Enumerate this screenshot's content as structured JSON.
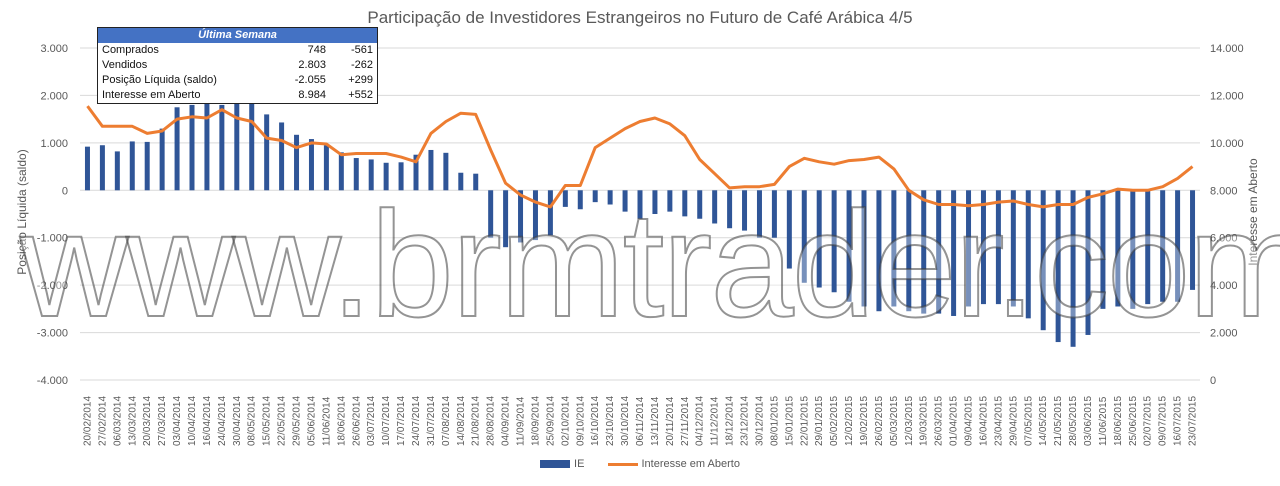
{
  "chart_data": {
    "type": "bar+line",
    "title": "Participação de Investidores Estrangeiros no Futuro de Café Arábica 4/5",
    "ylabel_left": "Posição Líquida (saldo)",
    "ylabel_right": "Interesse em Aberto",
    "ylim_left": [
      -4000,
      3000
    ],
    "ylim_right": [
      0,
      14000
    ],
    "yticks_left": [
      "3.000",
      "2.000",
      "1.000",
      "0",
      "-1.000",
      "-2.000",
      "-3.000",
      "-4.000"
    ],
    "yticks_right": [
      "14.000",
      "12.000",
      "10.000",
      "8.000",
      "6.000",
      "4.000",
      "2.000",
      "0"
    ],
    "categories": [
      "20/02/2014",
      "27/02/2014",
      "06/03/2014",
      "13/03/2014",
      "20/03/2014",
      "27/03/2014",
      "03/04/2014",
      "10/04/2014",
      "16/04/2014",
      "24/04/2014",
      "30/04/2014",
      "08/05/2014",
      "15/05/2014",
      "22/05/2014",
      "29/05/2014",
      "05/06/2014",
      "11/06/2014",
      "18/06/2014",
      "26/06/2014",
      "03/07/2014",
      "10/07/2014",
      "17/07/2014",
      "24/07/2014",
      "31/07/2014",
      "07/08/2014",
      "14/08/2014",
      "21/08/2014",
      "28/08/2014",
      "04/09/2014",
      "11/09/2014",
      "18/09/2014",
      "25/09/2014",
      "02/10/2014",
      "09/10/2014",
      "16/10/2014",
      "23/10/2014",
      "30/10/2014",
      "06/11/2014",
      "13/11/2014",
      "20/11/2014",
      "27/11/2014",
      "04/12/2014",
      "11/12/2014",
      "18/12/2014",
      "23/12/2014",
      "30/12/2014",
      "08/01/2015",
      "15/01/2015",
      "22/01/2015",
      "29/01/2015",
      "05/02/2015",
      "12/02/2015",
      "19/02/2015",
      "26/02/2015",
      "05/03/2015",
      "12/03/2015",
      "19/03/2015",
      "26/03/2015",
      "01/04/2015",
      "09/04/2015",
      "16/04/2015",
      "23/04/2015",
      "29/04/2015",
      "07/05/2015",
      "14/05/2015",
      "21/05/2015",
      "28/05/2015",
      "03/06/2015",
      "11/06/2015",
      "18/06/2015",
      "25/06/2015",
      "02/07/2015",
      "09/07/2015",
      "16/07/2015",
      "23/07/2015"
    ],
    "series": [
      {
        "name": "IE",
        "type": "bar",
        "axis": "left",
        "color": "#2f5597",
        "values": [
          920,
          950,
          820,
          1030,
          1020,
          1300,
          1750,
          1800,
          1830,
          1800,
          1850,
          1820,
          1600,
          1430,
          1170,
          1080,
          950,
          800,
          680,
          650,
          580,
          590,
          750,
          850,
          790,
          370,
          350,
          -1000,
          -1200,
          -1100,
          -1050,
          -950,
          -350,
          -400,
          -250,
          -300,
          -450,
          -600,
          -500,
          -450,
          -550,
          -600,
          -700,
          -800,
          -850,
          -1000,
          -1000,
          -1650,
          -1950,
          -2050,
          -2150,
          -2350,
          -2450,
          -2550,
          -2450,
          -2550,
          -2600,
          -2600,
          -2650,
          -2450,
          -2400,
          -2400,
          -2450,
          -2700,
          -2950,
          -3200,
          -3300,
          -3050,
          -2500,
          -2450,
          -2500,
          -2400,
          -2350,
          -2350,
          -2100
        ]
      },
      {
        "name": "Interesse em Aberto",
        "type": "line",
        "axis": "right",
        "color": "#ed7d31",
        "values": [
          11550,
          10700,
          10700,
          10700,
          10400,
          10500,
          11000,
          11100,
          11050,
          11400,
          11050,
          10900,
          10200,
          10100,
          9800,
          10000,
          9950,
          9500,
          9550,
          9550,
          9550,
          9400,
          9200,
          10400,
          10900,
          11250,
          11200,
          9700,
          8300,
          7800,
          7500,
          7300,
          8200,
          8200,
          9800,
          10200,
          10600,
          10900,
          11050,
          10800,
          10300,
          9300,
          8700,
          8100,
          8150,
          8150,
          8250,
          9000,
          9350,
          9200,
          9100,
          9250,
          9300,
          9400,
          8900,
          8000,
          7600,
          7400,
          7400,
          7350,
          7400,
          7500,
          7550,
          7400,
          7300,
          7400,
          7400,
          7700,
          7850,
          8050,
          8000,
          8000,
          8150,
          8500,
          9000
        ]
      }
    ]
  },
  "summary_table": {
    "header": "Última Semana",
    "rows": [
      {
        "label": "Comprados",
        "value": "748",
        "change": "-561"
      },
      {
        "label": "Vendidos",
        "value": "2.803",
        "change": "-262"
      },
      {
        "label": "Posição Líquida (saldo)",
        "value": "-2.055",
        "change": "+299"
      },
      {
        "label": "Interesse em Aberto",
        "value": "8.984",
        "change": "+552"
      }
    ]
  },
  "legend": {
    "bar_label": "IE",
    "line_label": "Interesse em Aberto"
  },
  "watermark": "www.brmtrader.com"
}
